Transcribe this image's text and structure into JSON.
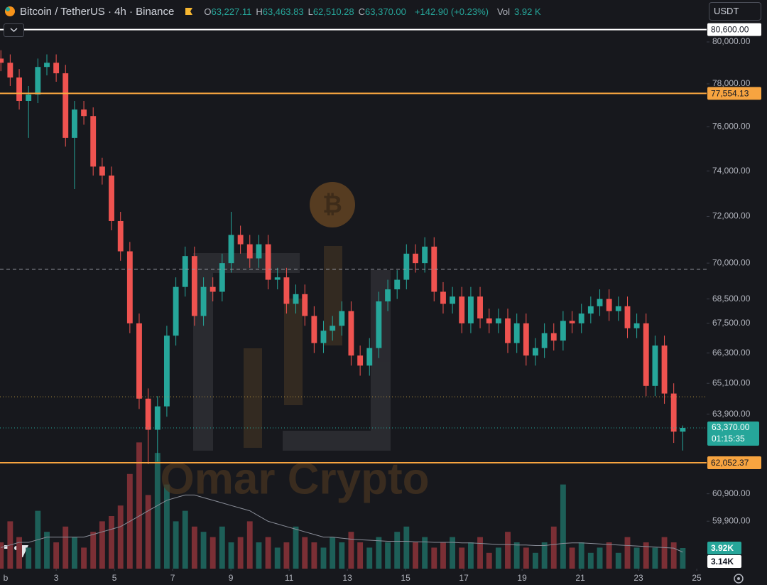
{
  "chart_data": {
    "type": "candlestick",
    "legend": {
      "symbol": "Bitcoin / TetherUS · 4h · Binance",
      "fields": [
        {
          "key": "O",
          "value": "63,227.11"
        },
        {
          "key": "H",
          "value": "63,463.83"
        },
        {
          "key": "L",
          "value": "62,510.28"
        },
        {
          "key": "C",
          "value": "63,370.00"
        }
      ],
      "change": "+142.90 (+0.23%)",
      "volume": {
        "key": "Vol",
        "value": "3.92 K"
      }
    },
    "currency": "USDT",
    "watermark": "Omar Crypto",
    "log_scale": true,
    "grid": false,
    "up_color": "#26a69a",
    "down_color": "#ef5350",
    "volume_up_color": "#1d5f58",
    "volume_down_color": "#7b2f35",
    "ylim": [
      58208,
      82051
    ],
    "yticks": [
      {
        "value": 80000,
        "label": "80,000.00"
      },
      {
        "value": 78000,
        "label": "78,000.00"
      },
      {
        "value": 76000,
        "label": "76,000.00"
      },
      {
        "value": 74000,
        "label": "74,000.00"
      },
      {
        "value": 72000,
        "label": "72,000.00"
      },
      {
        "value": 70000,
        "label": "70,000.00"
      },
      {
        "value": 68500,
        "label": "68,500.00"
      },
      {
        "value": 67500,
        "label": "67,500.00"
      },
      {
        "value": 66300,
        "label": "66,300.00"
      },
      {
        "value": 65100,
        "label": "65,100.00"
      },
      {
        "value": 63900,
        "label": "63,900.00"
      },
      {
        "value": 60900,
        "label": "60,900.00"
      },
      {
        "value": 59900,
        "label": "59,900.00"
      }
    ],
    "xlim": [
      1.07,
      25.34
    ],
    "xticks": [
      {
        "value": 1,
        "label": "b"
      },
      3,
      5,
      7,
      9,
      11,
      13,
      15,
      17,
      19,
      21,
      23,
      25
    ],
    "y2lim": [
      0,
      108.1
    ],
    "x": [
      1.1,
      1.42,
      1.73,
      2.05,
      2.37,
      2.68,
      3.0,
      3.32,
      3.63,
      3.95,
      4.27,
      4.58,
      4.9,
      5.21,
      5.53,
      5.85,
      6.16,
      6.48,
      6.8,
      7.11,
      7.43,
      7.75,
      8.06,
      8.38,
      8.7,
      9.01,
      9.33,
      9.65,
      9.96,
      10.28,
      10.6,
      10.91,
      11.23,
      11.54,
      11.86,
      12.18,
      12.49,
      12.81,
      13.13,
      13.44,
      13.76,
      14.08,
      14.39,
      14.71,
      15.03,
      15.34,
      15.66,
      15.98,
      16.29,
      16.61,
      16.93,
      17.24,
      17.56,
      17.87,
      18.19,
      18.51,
      18.82,
      19.14,
      19.46,
      19.77,
      20.09,
      20.41,
      20.72,
      21.04,
      21.36,
      21.67,
      21.99,
      22.31,
      22.62,
      22.94,
      23.26,
      23.57,
      23.89,
      24.21,
      24.52
    ],
    "open": [
      79200,
      79000,
      78300,
      77200,
      77500,
      78800,
      79000,
      78500,
      75500,
      76800,
      76500,
      74200,
      73800,
      71800,
      70500,
      67500,
      64500,
      63300,
      64200,
      67000,
      69000,
      70300,
      67800,
      69000,
      68800,
      70000,
      71200,
      70800,
      70200,
      70800,
      69300,
      69400,
      68300,
      68700,
      67800,
      66700,
      67200,
      67400,
      68000,
      66200,
      65800,
      66500,
      68400,
      68900,
      69300,
      70400,
      70000,
      70700,
      68800,
      68300,
      68600,
      67500,
      68600,
      67700,
      67500,
      67700,
      66700,
      67500,
      66200,
      66500,
      67100,
      66800,
      67600,
      67500,
      67900,
      68200,
      68500,
      68000,
      68200,
      67300,
      67500,
      65000,
      66600,
      64700,
      63227.11
    ],
    "high": [
      79600,
      79400,
      78700,
      77900,
      79200,
      79400,
      79400,
      78900,
      77200,
      77200,
      76900,
      74600,
      74200,
      72200,
      70900,
      67900,
      64900,
      64600,
      67400,
      69400,
      70700,
      70700,
      69400,
      69400,
      70400,
      72200,
      71600,
      71200,
      71200,
      71200,
      69800,
      69800,
      69100,
      69100,
      68200,
      67600,
      67800,
      68400,
      68400,
      66600,
      66900,
      68800,
      69300,
      69700,
      70800,
      70800,
      71100,
      71100,
      69200,
      69000,
      69000,
      69000,
      69000,
      68100,
      68100,
      68100,
      67900,
      67900,
      66900,
      67500,
      67500,
      68000,
      68000,
      68300,
      68600,
      68900,
      68900,
      68600,
      68600,
      67900,
      67900,
      67000,
      67000,
      65100,
      63463.83
    ],
    "low": [
      78600,
      77900,
      76800,
      75500,
      77100,
      78400,
      78100,
      75100,
      73200,
      76100,
      73800,
      73400,
      71400,
      70100,
      67100,
      64100,
      62000,
      62100,
      63800,
      66600,
      68600,
      67400,
      67400,
      68400,
      68400,
      69600,
      70400,
      69800,
      69800,
      68900,
      68900,
      67900,
      67900,
      67400,
      66300,
      66300,
      66800,
      67000,
      65800,
      65400,
      65400,
      66100,
      68000,
      68500,
      68900,
      69600,
      69600,
      68400,
      67900,
      67900,
      67100,
      67100,
      67300,
      67100,
      67100,
      66300,
      66300,
      65800,
      65800,
      66100,
      66400,
      66400,
      67100,
      67100,
      67500,
      67800,
      67600,
      67600,
      66900,
      66900,
      64600,
      64600,
      64300,
      62800,
      62510.28
    ],
    "close": [
      79000,
      78300,
      77200,
      77500,
      78800,
      79000,
      78500,
      75500,
      76800,
      76500,
      74200,
      73800,
      71800,
      70500,
      67500,
      64500,
      63300,
      64200,
      67000,
      69000,
      70300,
      67800,
      69000,
      68800,
      70000,
      71200,
      70800,
      70200,
      70800,
      69300,
      69400,
      68300,
      68700,
      67800,
      66700,
      67200,
      67400,
      68000,
      66200,
      65800,
      66500,
      68400,
      68900,
      69300,
      70400,
      70000,
      70700,
      68800,
      68300,
      68600,
      67500,
      68600,
      67700,
      67500,
      67700,
      66700,
      67500,
      66200,
      66500,
      67100,
      66800,
      67600,
      67500,
      67900,
      68200,
      68500,
      68000,
      68200,
      67300,
      67500,
      65000,
      66600,
      64700,
      63227.11,
      63370
    ],
    "volume": [
      5,
      9,
      6,
      4,
      11,
      7,
      5,
      8,
      6,
      4,
      7,
      9,
      10,
      12,
      18,
      24,
      14,
      22,
      16,
      9,
      11,
      8,
      7,
      6,
      8,
      5,
      6,
      9,
      5,
      6,
      4,
      5,
      8,
      6,
      5,
      4,
      6,
      5,
      7,
      5,
      4,
      6,
      5,
      7,
      8,
      5,
      6,
      4,
      5,
      6,
      4,
      5,
      6,
      3,
      4,
      7,
      5,
      4,
      3,
      5,
      8,
      16,
      4,
      5,
      3,
      4,
      5,
      3,
      6,
      4,
      5,
      4,
      6,
      5,
      3.92
    ],
    "volume_ma": [
      4,
      4.5,
      5,
      5,
      5.5,
      6,
      6,
      6,
      6,
      6,
      6.5,
      7,
      7.5,
      8,
      9,
      10,
      11,
      12,
      13,
      13.5,
      14,
      14,
      13.5,
      13,
      12.5,
      12,
      11.5,
      11,
      10,
      9,
      8.5,
      8,
      7.5,
      7,
      6.5,
      6,
      6,
      5.8,
      5.6,
      5.5,
      5.4,
      5.3,
      5.2,
      5.2,
      5.2,
      5.1,
      5.1,
      5,
      5,
      5,
      4.9,
      4.9,
      4.8,
      4.7,
      4.6,
      4.6,
      4.5,
      4.5,
      4.4,
      4.4,
      4.6,
      4.8,
      4.9,
      4.9,
      4.8,
      4.7,
      4.6,
      4.5,
      4.4,
      4.3,
      4.2,
      4.1,
      4,
      3.9,
      3.14
    ],
    "volume_ma_color": "#8a8e99",
    "price_lines": [
      {
        "value": 80600,
        "label": "80,600.00",
        "color": "#ffffff"
      },
      {
        "value": 77554.13,
        "label": "77,554.13",
        "color": "#f7a440"
      },
      {
        "value": 62052.37,
        "label": "62,052.37",
        "color": "#f7a440"
      }
    ],
    "reference_lines": [
      {
        "value": 69740,
        "style": "dashed",
        "color": "#9598a1"
      },
      {
        "value": 64570,
        "style": "dotted",
        "color": "#b8953f"
      }
    ],
    "last_price": {
      "value": 63370,
      "label": "63,370.00",
      "countdown": "01:15:35",
      "color": "#26a69a"
    },
    "volume_tags": [
      {
        "value": 3.92,
        "label": "3.92K",
        "color": "#26a69a"
      },
      {
        "value": 3.14,
        "label": "3.14K",
        "color": "#ffffff"
      }
    ]
  }
}
